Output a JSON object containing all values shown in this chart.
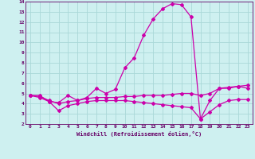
{
  "xlabel": "Windchill (Refroidissement éolien,°C)",
  "bg_color": "#cef0f0",
  "grid_color": "#aad8d8",
  "line_color": "#cc00aa",
  "xlim": [
    -0.5,
    23.5
  ],
  "ylim": [
    2,
    14
  ],
  "xticks": [
    0,
    1,
    2,
    3,
    4,
    5,
    6,
    7,
    8,
    9,
    10,
    11,
    12,
    13,
    14,
    15,
    16,
    17,
    18,
    19,
    20,
    21,
    22,
    23
  ],
  "yticks": [
    2,
    3,
    4,
    5,
    6,
    7,
    8,
    9,
    10,
    11,
    12,
    13,
    14
  ],
  "series1_x": [
    0,
    1,
    2,
    3,
    4,
    5,
    6,
    7,
    8,
    9,
    10,
    11,
    12,
    13,
    14,
    15,
    16,
    17,
    18,
    19,
    20,
    21,
    22,
    23
  ],
  "series1_y": [
    4.8,
    4.8,
    4.2,
    4.1,
    4.8,
    4.3,
    4.6,
    5.5,
    5.0,
    5.4,
    7.5,
    8.5,
    10.7,
    12.3,
    13.3,
    13.8,
    13.7,
    12.5,
    2.5,
    4.3,
    5.5,
    5.5,
    5.7,
    5.5
  ],
  "series2_x": [
    0,
    1,
    2,
    3,
    4,
    5,
    6,
    7,
    8,
    9,
    10,
    11,
    12,
    13,
    14,
    15,
    16,
    17,
    18,
    19,
    20,
    21,
    22,
    23
  ],
  "series2_y": [
    4.8,
    4.7,
    4.3,
    4.0,
    4.2,
    4.3,
    4.5,
    4.6,
    4.6,
    4.6,
    4.7,
    4.7,
    4.8,
    4.8,
    4.8,
    4.9,
    5.0,
    5.0,
    4.8,
    5.0,
    5.5,
    5.6,
    5.7,
    5.8
  ],
  "series3_x": [
    0,
    1,
    2,
    3,
    4,
    5,
    6,
    7,
    8,
    9,
    10,
    11,
    12,
    13,
    14,
    15,
    16,
    17,
    18,
    19,
    20,
    21,
    22,
    23
  ],
  "series3_y": [
    4.8,
    4.6,
    4.2,
    3.3,
    3.8,
    4.0,
    4.2,
    4.3,
    4.3,
    4.3,
    4.3,
    4.2,
    4.1,
    4.0,
    3.9,
    3.8,
    3.7,
    3.6,
    2.5,
    3.2,
    3.9,
    4.3,
    4.4,
    4.4
  ]
}
